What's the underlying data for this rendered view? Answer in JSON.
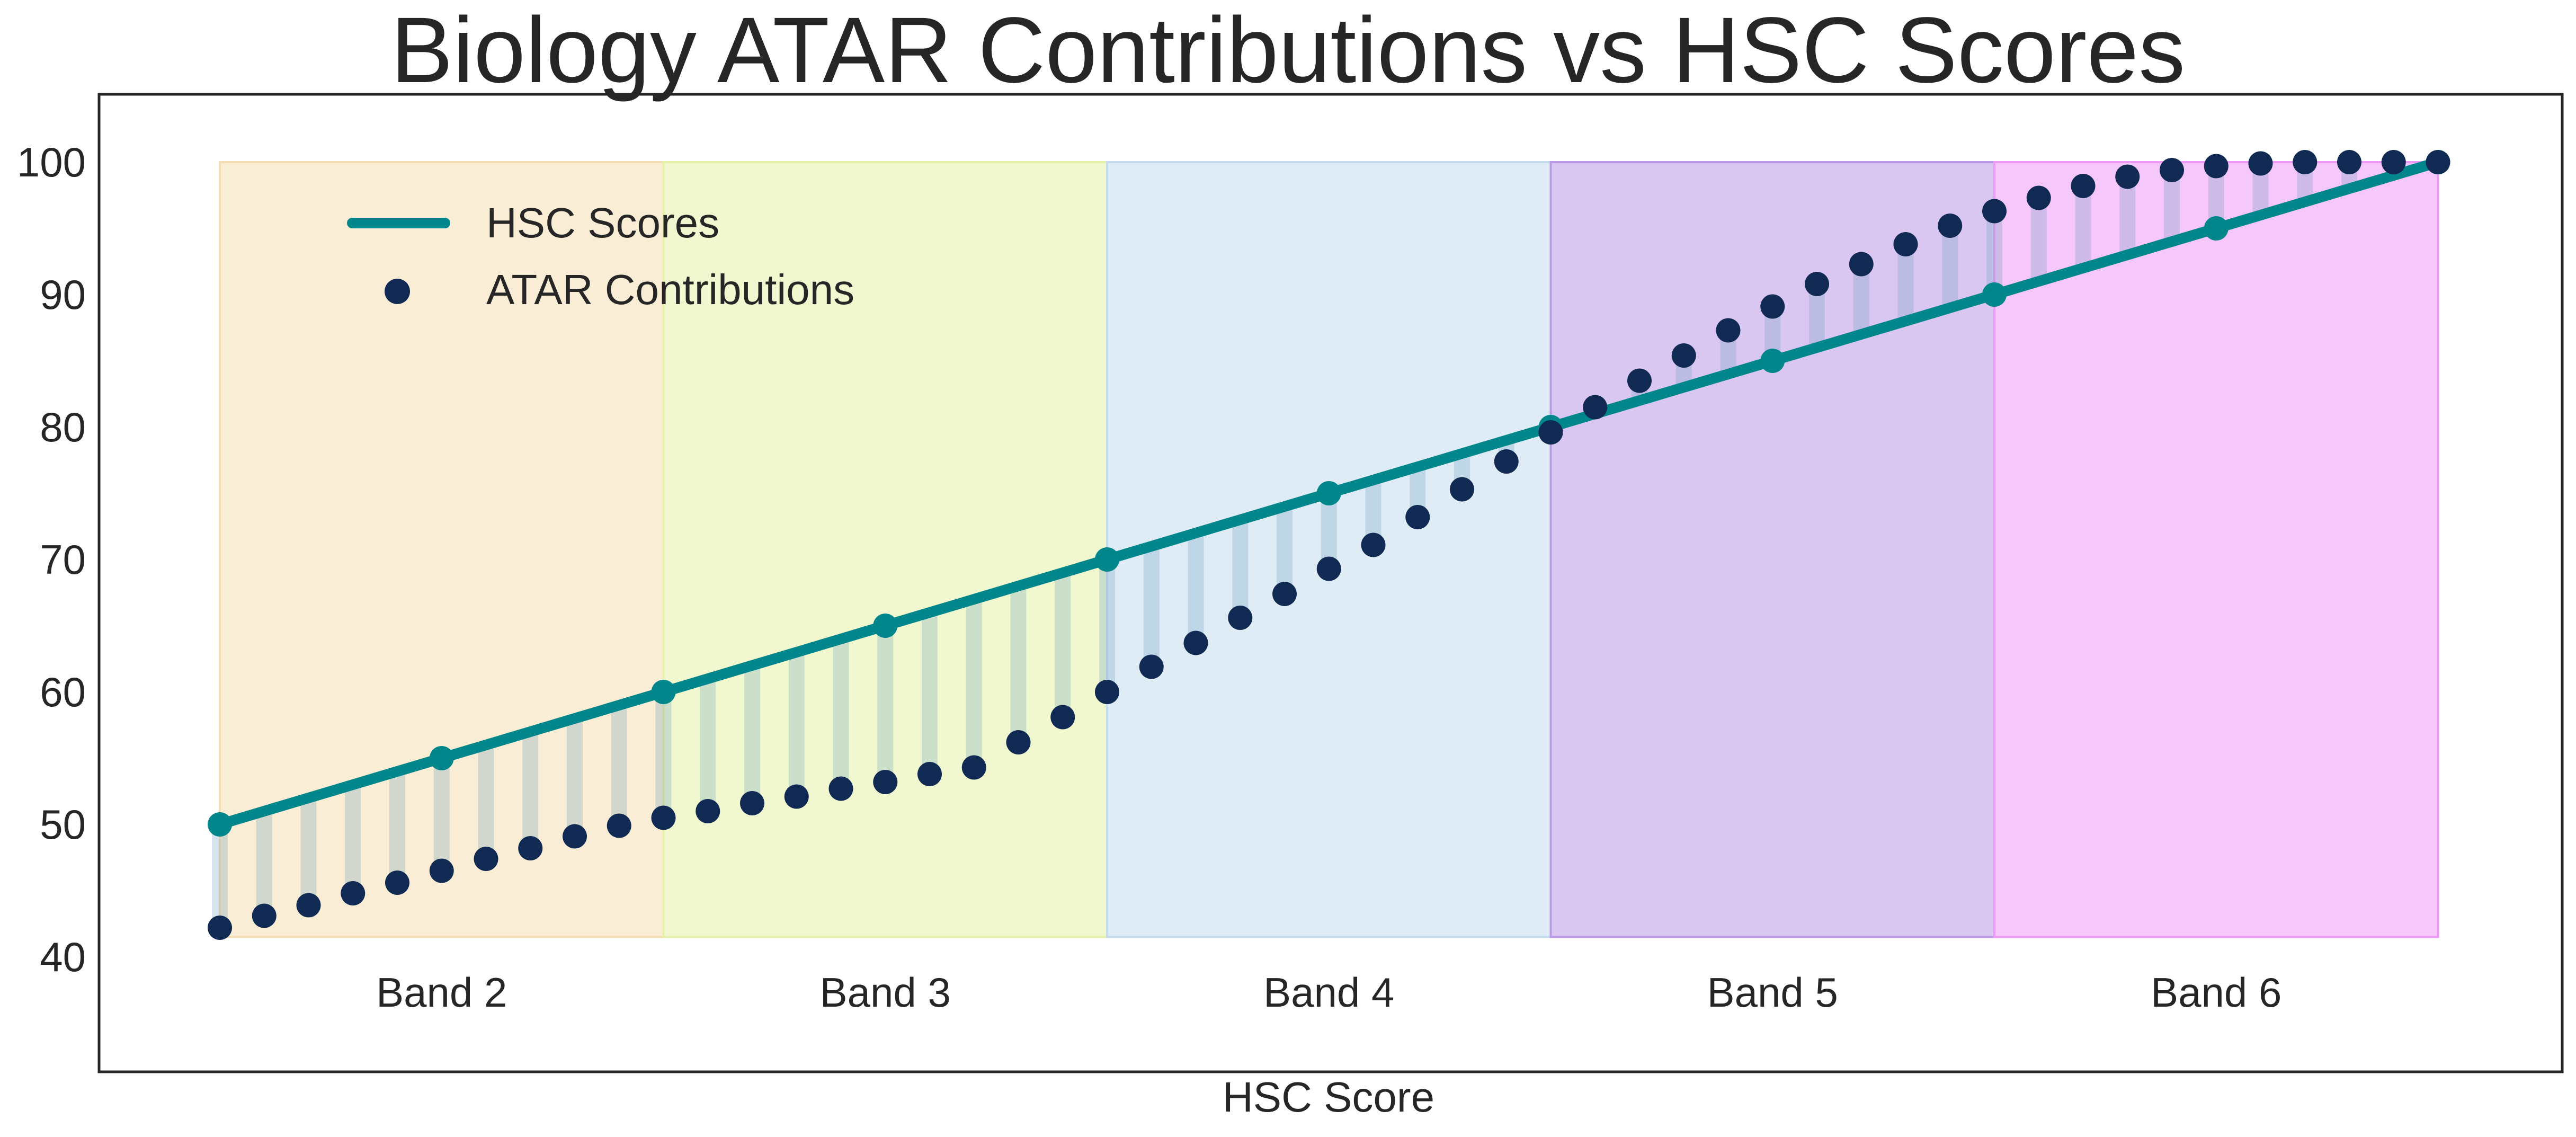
{
  "chart_data": {
    "type": "line",
    "title": "Biology ATAR Contributions vs HSC Scores",
    "xlabel": "HSC Score",
    "ylabel": "",
    "ylim": [
      31,
      105
    ],
    "yticks": [
      40,
      50,
      60,
      70,
      80,
      90,
      100
    ],
    "grid": false,
    "legend_position": "upper-left",
    "bands": [
      {
        "label": "Band 2",
        "color": "#f5deb3"
      },
      {
        "label": "Band 3",
        "color": "#e6f2a8"
      },
      {
        "label": "Band 4",
        "color": "#c5dced"
      },
      {
        "label": "Band 5",
        "color": "#bb99e6"
      },
      {
        "label": "Band 6",
        "color": "#ee99f5"
      }
    ],
    "band_fill_top": 100,
    "band_fill_bottom": 41.5,
    "series": [
      {
        "name": "HSC Scores",
        "kind": "line",
        "color": "#00868b",
        "x": [
          50,
          55,
          60,
          65,
          70,
          75,
          80,
          85,
          90,
          95,
          100
        ],
        "values": [
          50,
          55,
          60,
          65,
          70,
          75,
          80,
          85,
          90,
          95,
          100
        ]
      },
      {
        "name": "ATAR Contributions",
        "kind": "scatter",
        "color": "#102a54",
        "x": [
          50,
          51,
          52,
          53,
          54,
          55,
          56,
          57,
          58,
          59,
          60,
          61,
          62,
          63,
          64,
          65,
          66,
          67,
          68,
          69,
          70,
          71,
          72,
          73,
          74,
          75,
          76,
          77,
          78,
          79,
          80,
          81,
          82,
          83,
          84,
          85,
          86,
          87,
          88,
          89,
          90,
          91,
          92,
          93,
          94,
          95,
          96,
          97,
          98,
          99,
          100
        ],
        "values": [
          42.2,
          43.1,
          43.9,
          44.8,
          45.6,
          46.5,
          47.4,
          48.2,
          49.1,
          49.9,
          50.5,
          51.0,
          51.6,
          52.1,
          52.7,
          53.2,
          53.8,
          54.3,
          56.2,
          58.1,
          60.0,
          61.9,
          63.7,
          65.6,
          67.4,
          69.3,
          71.1,
          73.2,
          75.3,
          77.4,
          79.6,
          81.5,
          83.5,
          85.4,
          87.3,
          89.1,
          90.8,
          92.3,
          93.8,
          95.2,
          96.3,
          97.3,
          98.2,
          98.9,
          99.4,
          99.7,
          99.9,
          100.0,
          100.0,
          100.0,
          100.0
        ]
      }
    ]
  }
}
